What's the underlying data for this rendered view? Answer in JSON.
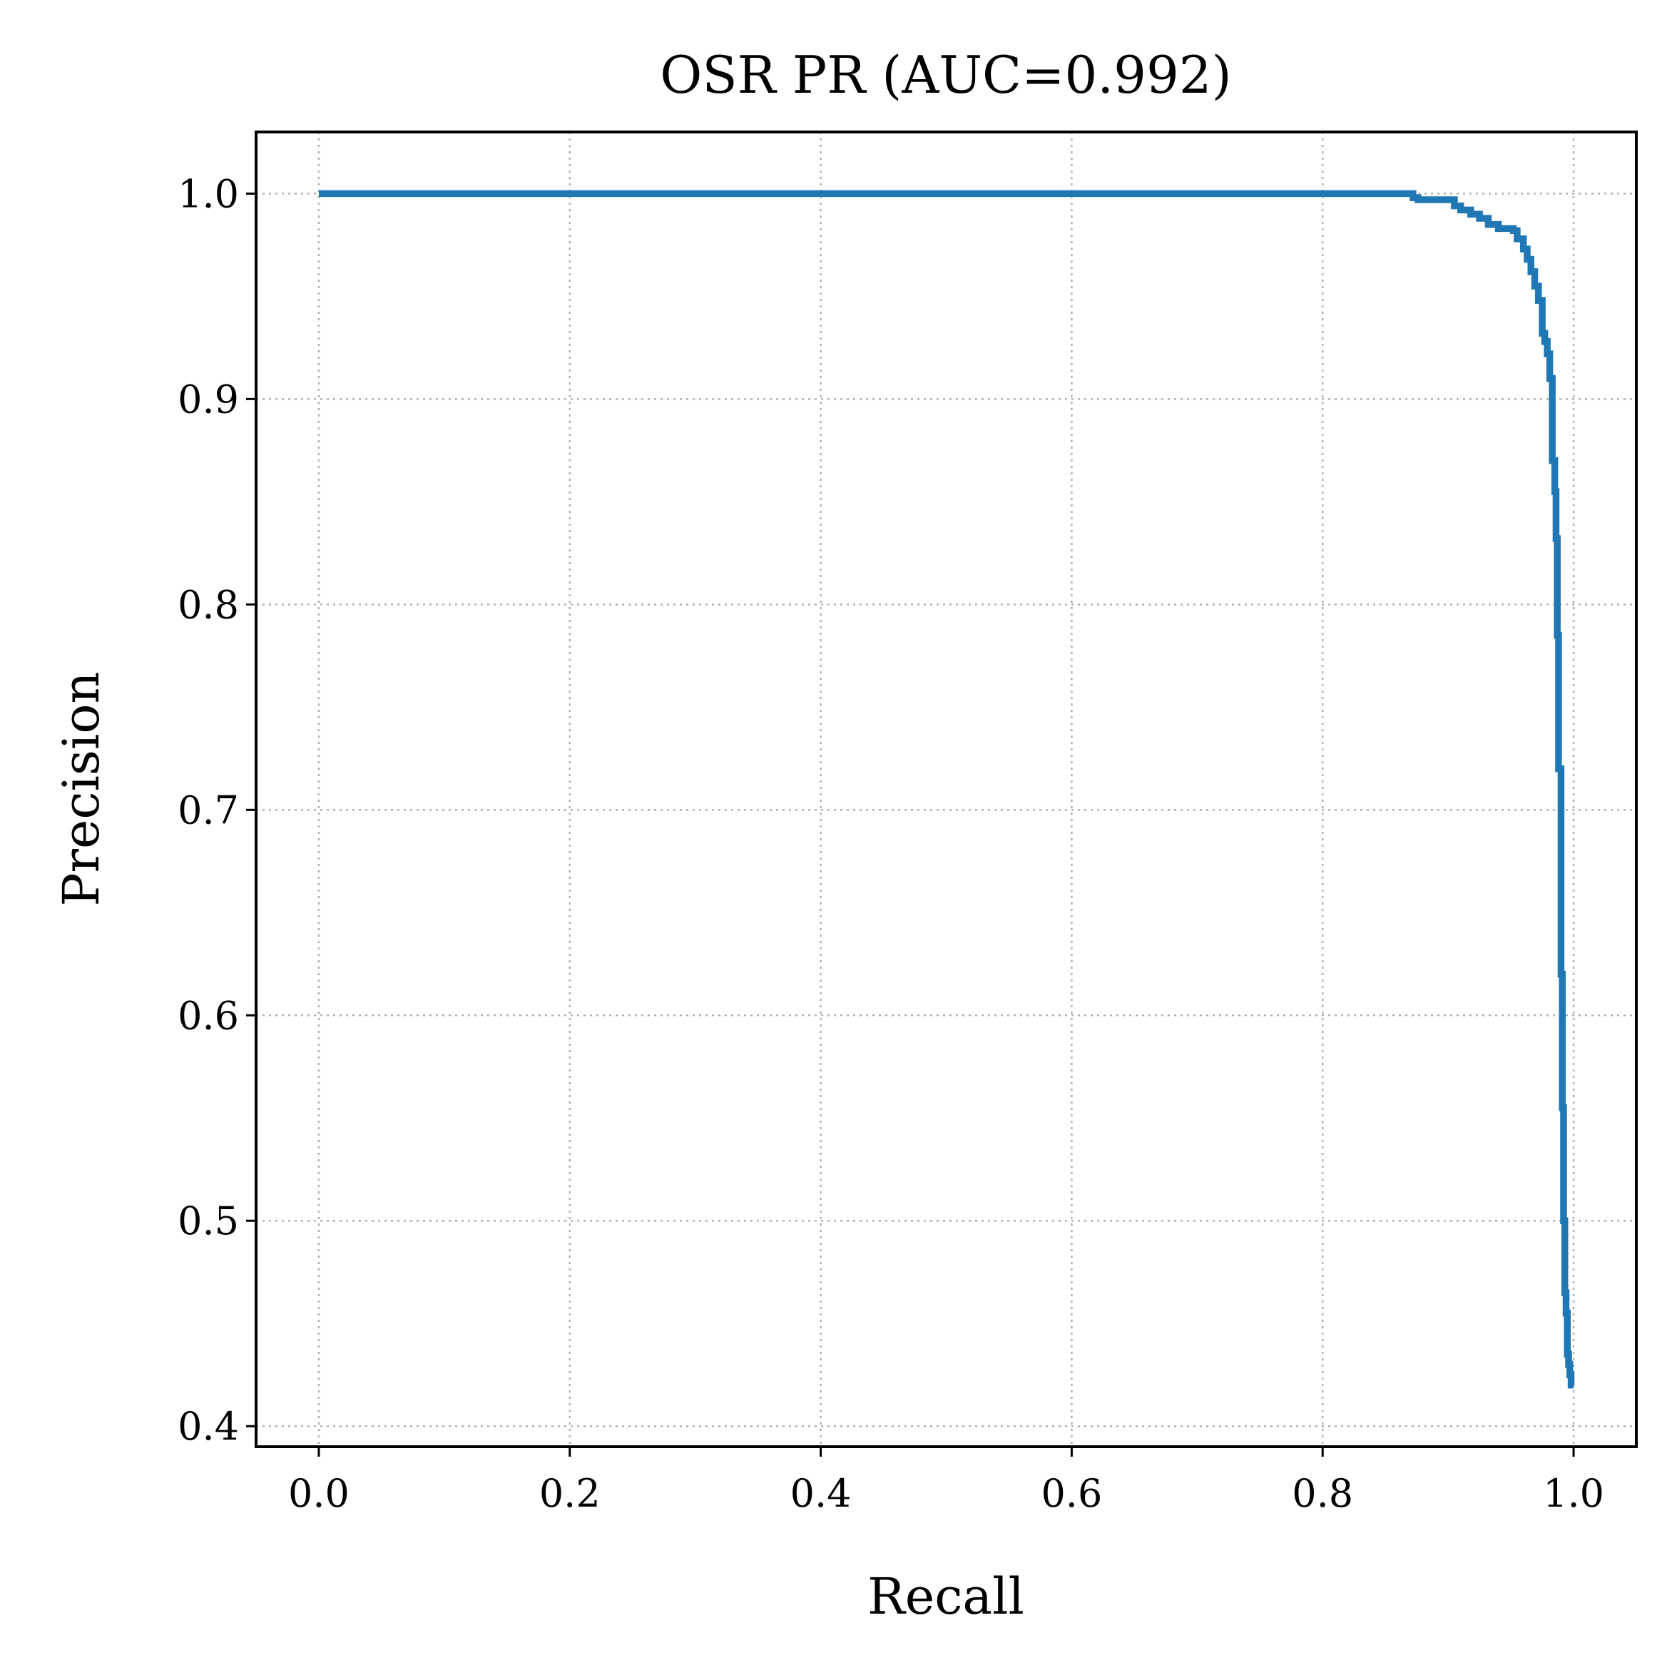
{
  "chart_data": {
    "type": "line",
    "title": "OSR PR (AUC=0.992)",
    "xlabel": "Recall",
    "ylabel": "Precision",
    "xlim": [
      -0.05,
      1.05
    ],
    "ylim": [
      0.39,
      1.03
    ],
    "xticks": [
      0.0,
      0.2,
      0.4,
      0.6,
      0.8,
      1.0
    ],
    "xtick_labels": [
      "0.0",
      "0.2",
      "0.4",
      "0.6",
      "0.8",
      "1.0"
    ],
    "yticks": [
      0.4,
      0.5,
      0.6,
      0.7,
      0.8,
      0.9,
      1.0
    ],
    "ytick_labels": [
      "0.4",
      "0.5",
      "0.6",
      "0.7",
      "0.8",
      "0.9",
      "1.0"
    ],
    "grid": true,
    "legend": "none",
    "colors": {
      "series": "#1f77b4"
    },
    "series": [
      {
        "step": true,
        "x": [
          0.0,
          0.866,
          0.872,
          0.876,
          0.88,
          0.905,
          0.91,
          0.918,
          0.925,
          0.932,
          0.94,
          0.952,
          0.955,
          0.96,
          0.963,
          0.966,
          0.969,
          0.972,
          0.975,
          0.977,
          0.979,
          0.981,
          0.983,
          0.985,
          0.986,
          0.987,
          0.988,
          0.99,
          0.991,
          0.992,
          0.993,
          0.994,
          0.995,
          0.996,
          0.997,
          0.998,
          0.999,
          1.0
        ],
        "y": [
          1.0,
          1.0,
          0.998,
          0.997,
          0.997,
          0.994,
          0.992,
          0.99,
          0.988,
          0.985,
          0.983,
          0.982,
          0.978,
          0.973,
          0.968,
          0.962,
          0.955,
          0.948,
          0.932,
          0.928,
          0.922,
          0.91,
          0.87,
          0.855,
          0.832,
          0.785,
          0.72,
          0.62,
          0.555,
          0.5,
          0.465,
          0.455,
          0.435,
          0.43,
          0.425,
          0.42,
          0.42,
          0.42
        ]
      }
    ]
  }
}
